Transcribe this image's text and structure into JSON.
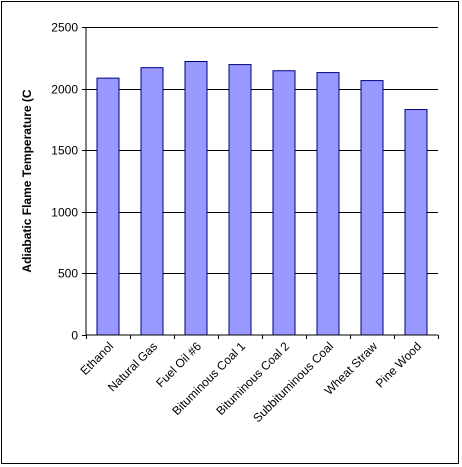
{
  "chart_data": {
    "type": "bar",
    "title": "",
    "xlabel": "",
    "ylabel": "Adiabatic Flame Temperature (C",
    "categories": [
      "Ethanol",
      "Natural Gas",
      "Fuel Oil #6",
      "Bituminous Coal 1",
      "Bituminous Coal 2",
      "Subbituminous Coal",
      "Wheat Straw",
      "Pine Wood"
    ],
    "values": [
      2085,
      2170,
      2220,
      2195,
      2145,
      2130,
      2065,
      1830
    ],
    "ylim": [
      0,
      2500
    ],
    "yticks": [
      0,
      500,
      1000,
      1500,
      2000,
      2500
    ],
    "grid": true,
    "bar_color": "#9999ff",
    "bar_edge_color": "#000080",
    "legend": "none"
  }
}
